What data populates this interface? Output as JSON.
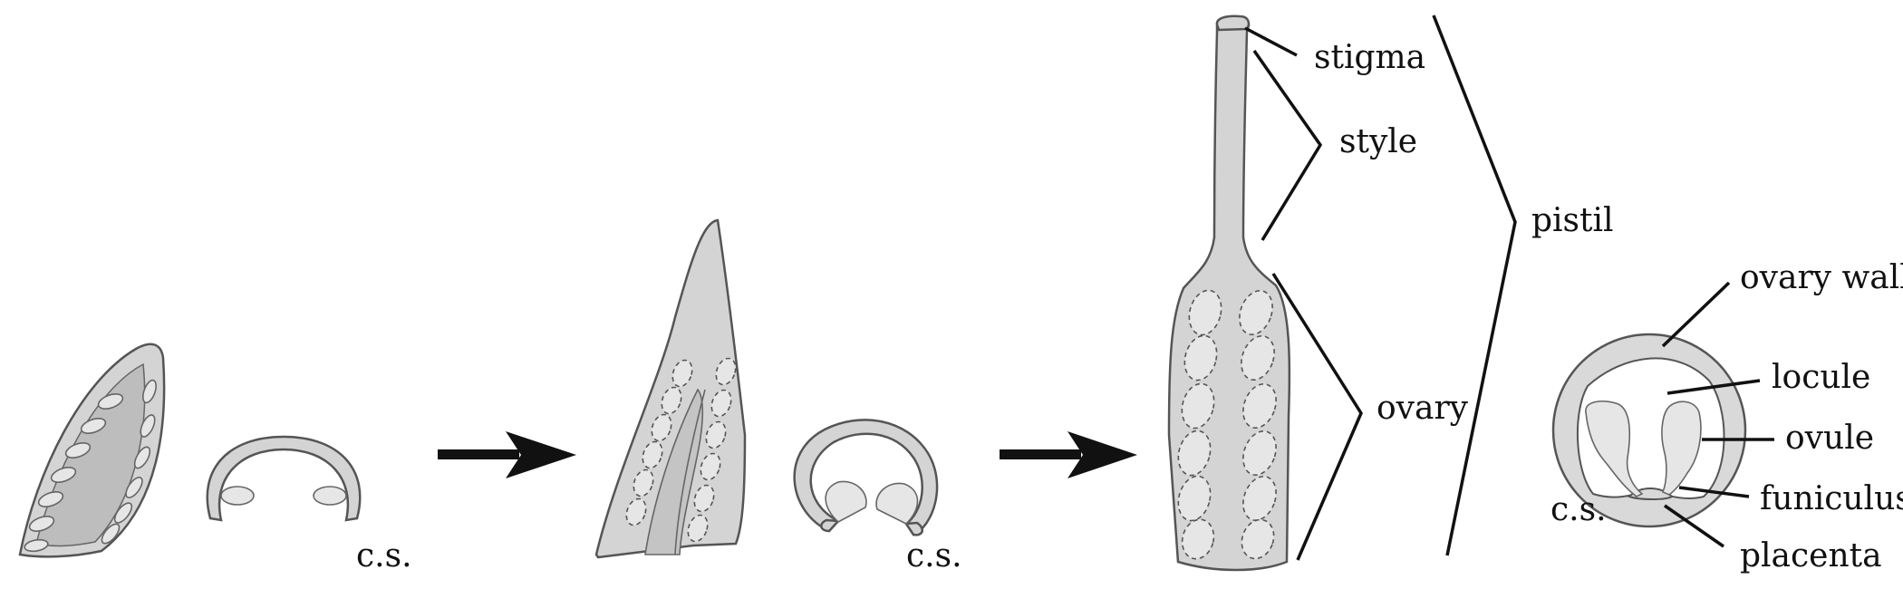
{
  "labels": {
    "cs_1": "c.s.",
    "cs_2": "c.s.",
    "cs_3": "c.s.",
    "stigma": "stigma",
    "style": "style",
    "ovary": "ovary",
    "pistil": "pistil",
    "ovary_wall": "ovary wall",
    "locule": "locule",
    "ovule": "ovule",
    "funiculus": "funiculus",
    "placenta": "placenta"
  },
  "colors": {
    "tissue_fill": "#d4d4d4",
    "ovule_fill": "#e6e6e6",
    "outline": "#555555",
    "arrow": "#111111"
  }
}
